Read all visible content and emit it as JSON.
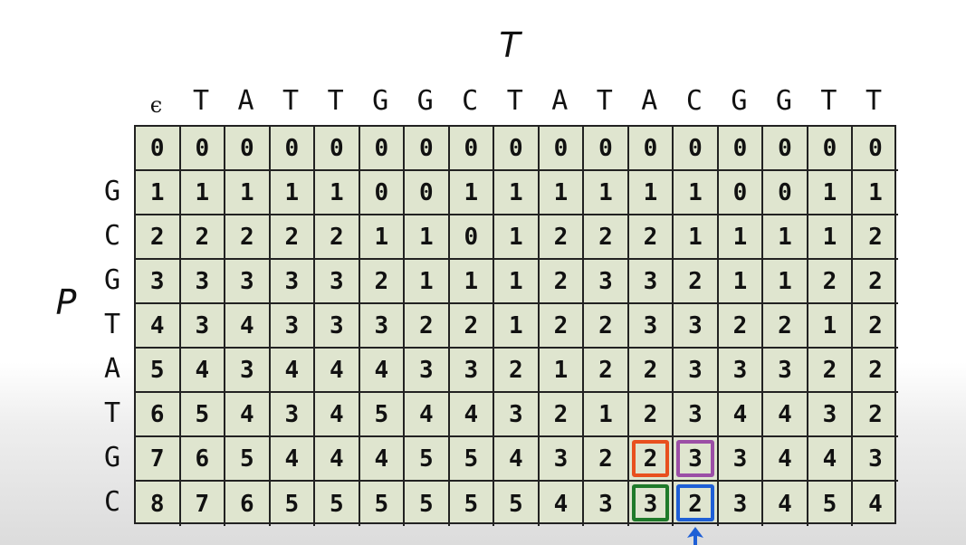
{
  "labels": {
    "text": "T",
    "pattern": "P",
    "epsilon": "ϵ"
  },
  "text_chars": [
    "T",
    "A",
    "T",
    "T",
    "G",
    "G",
    "C",
    "T",
    "A",
    "T",
    "A",
    "C",
    "G",
    "G",
    "T",
    "T"
  ],
  "pattern_chars": [
    "G",
    "C",
    "G",
    "T",
    "A",
    "T",
    "G",
    "C"
  ],
  "matrix": [
    [
      0,
      0,
      0,
      0,
      0,
      0,
      0,
      0,
      0,
      0,
      0,
      0,
      0,
      0,
      0,
      0,
      0
    ],
    [
      1,
      1,
      1,
      1,
      1,
      0,
      0,
      1,
      1,
      1,
      1,
      1,
      1,
      0,
      0,
      1,
      1
    ],
    [
      2,
      2,
      2,
      2,
      2,
      1,
      1,
      0,
      1,
      2,
      2,
      2,
      1,
      1,
      1,
      1,
      2
    ],
    [
      3,
      3,
      3,
      3,
      3,
      2,
      1,
      1,
      1,
      2,
      3,
      3,
      2,
      1,
      1,
      2,
      2
    ],
    [
      4,
      3,
      4,
      3,
      3,
      3,
      2,
      2,
      1,
      2,
      2,
      3,
      3,
      2,
      2,
      1,
      2
    ],
    [
      5,
      4,
      3,
      4,
      4,
      4,
      3,
      3,
      2,
      1,
      2,
      2,
      3,
      3,
      3,
      2,
      2
    ],
    [
      6,
      5,
      4,
      3,
      4,
      5,
      4,
      4,
      3,
      2,
      1,
      2,
      3,
      4,
      4,
      3,
      2
    ],
    [
      7,
      6,
      5,
      4,
      4,
      4,
      5,
      5,
      4,
      3,
      2,
      2,
      3,
      3,
      4,
      4,
      3
    ],
    [
      8,
      7,
      6,
      5,
      5,
      5,
      5,
      5,
      5,
      4,
      3,
      3,
      2,
      3,
      4,
      5,
      4
    ]
  ],
  "highlights": [
    {
      "row": 7,
      "col": 11,
      "color": "#e8501e"
    },
    {
      "row": 7,
      "col": 12,
      "color": "#9b4fa6"
    },
    {
      "row": 8,
      "col": 11,
      "color": "#1f7a2a"
    },
    {
      "row": 8,
      "col": 12,
      "color": "#1e5fd6"
    }
  ],
  "arrow_color": "#1e5fd6"
}
